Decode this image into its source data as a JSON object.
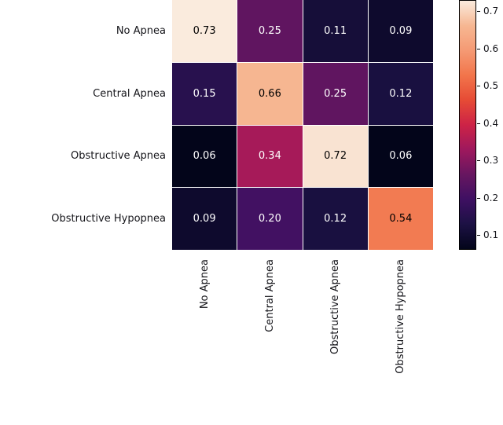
{
  "chart_data": {
    "type": "heatmap",
    "title": "",
    "row_labels": [
      "No Apnea",
      "Central Apnea",
      "Obstructive Apnea",
      "Obstructive Hypopnea"
    ],
    "col_labels": [
      "No Apnea",
      "Central Apnea",
      "Obstructive Apnea",
      "Obstructive Hypopnea"
    ],
    "values": [
      [
        0.73,
        0.25,
        0.11,
        0.09
      ],
      [
        0.15,
        0.66,
        0.25,
        0.12
      ],
      [
        0.06,
        0.34,
        0.72,
        0.06
      ],
      [
        0.09,
        0.2,
        0.12,
        0.54
      ]
    ],
    "annotation_format": ".2f",
    "vmin": 0.06,
    "vmax": 0.73,
    "colormap": "rocket",
    "colorbar_ticks": [
      0.7,
      0.6,
      0.5,
      0.4,
      0.3,
      0.2,
      0.1
    ],
    "legend_position": "right",
    "grid": false
  },
  "colors": {
    "background": "#ffffff",
    "text": "#15151a",
    "annotation_light": "#ffffff",
    "annotation_dark": "#000000",
    "colorbar_outline": "#000000",
    "rocket_anchors": [
      {
        "t": 0.0,
        "color": "#03051A"
      },
      {
        "t": 0.1,
        "color": "#1C1144"
      },
      {
        "t": 0.2,
        "color": "#3E1062"
      },
      {
        "t": 0.3,
        "color": "#671660"
      },
      {
        "t": 0.4,
        "color": "#9E185D"
      },
      {
        "t": 0.5,
        "color": "#CD2346"
      },
      {
        "t": 0.6,
        "color": "#E64B35"
      },
      {
        "t": 0.7,
        "color": "#F2754B"
      },
      {
        "t": 0.8,
        "color": "#F59A74"
      },
      {
        "t": 0.9,
        "color": "#F6B792"
      },
      {
        "t": 1.0,
        "color": "#FAEBDD"
      }
    ]
  }
}
